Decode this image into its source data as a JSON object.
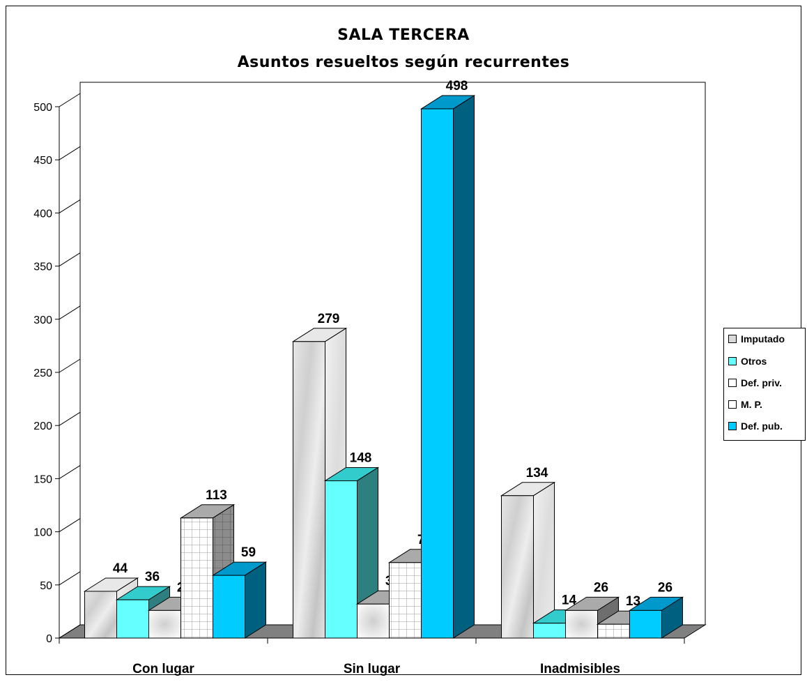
{
  "chart_data": {
    "type": "bar",
    "title": "SALA TERCERA",
    "subtitle": "Asuntos resueltos según recurrentes",
    "categories": [
      "Con lugar",
      "Sin lugar",
      "Inadmisibles"
    ],
    "series": [
      {
        "name": "Imputado",
        "values": [
          44,
          279,
          134
        ],
        "labels": [
          "44",
          "279",
          "134"
        ],
        "color": "#d9d9d9"
      },
      {
        "name": "Otros",
        "values": [
          36,
          148,
          14
        ],
        "labels": [
          "36",
          "148",
          "14"
        ],
        "color": "#66ffff"
      },
      {
        "name": "Def. priv.",
        "values": [
          26,
          32,
          26
        ],
        "labels": [
          "26",
          "32",
          "26"
        ],
        "color": "#ffffff"
      },
      {
        "name": "M. P.",
        "values": [
          113,
          71,
          13
        ],
        "labels": [
          "113",
          "71",
          "13"
        ],
        "color": "#ffffff"
      },
      {
        "name": "Def. pub.",
        "values": [
          59,
          498,
          26
        ],
        "labels": [
          "59",
          "498",
          "26"
        ],
        "color": "#00ccff"
      }
    ],
    "yticks": [
      "0",
      "50",
      "100",
      "150",
      "200",
      "250",
      "300",
      "350",
      "400",
      "450",
      "500"
    ],
    "ylim": [
      0,
      500
    ],
    "legend_position": "right",
    "grid": false
  }
}
